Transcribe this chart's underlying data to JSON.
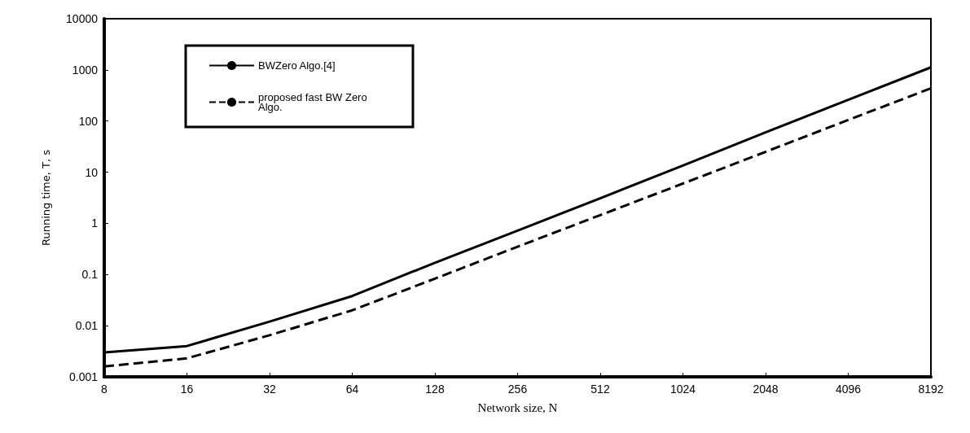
{
  "chart_data": {
    "type": "line",
    "xlabel": "Network size, N",
    "ylabel": "Running time, T, s",
    "categories": [
      "8",
      "16",
      "32",
      "64",
      "128",
      "256",
      "512",
      "1024",
      "2048",
      "4096",
      "8192"
    ],
    "series": [
      {
        "name": "BWZero Algo.[4]",
        "color": "#000000",
        "line_style": "solid",
        "values": [
          0.003,
          0.004,
          0.012,
          0.038,
          0.17,
          0.72,
          3.1,
          13.5,
          60,
          260,
          1120
        ]
      },
      {
        "name": "proposed fast BW Zero Algo.",
        "color": "#000000",
        "line_style": "dashed",
        "values": [
          0.0016,
          0.0023,
          0.0065,
          0.02,
          0.083,
          0.35,
          1.45,
          6,
          25,
          105,
          436
        ]
      }
    ],
    "log": "y",
    "ylim": [
      0.001,
      10000
    ],
    "yticks": [
      0.001,
      0.01,
      0.1,
      1,
      10,
      100,
      1000,
      10000
    ],
    "grid": false,
    "legend": "top left",
    "marker": "none"
  }
}
